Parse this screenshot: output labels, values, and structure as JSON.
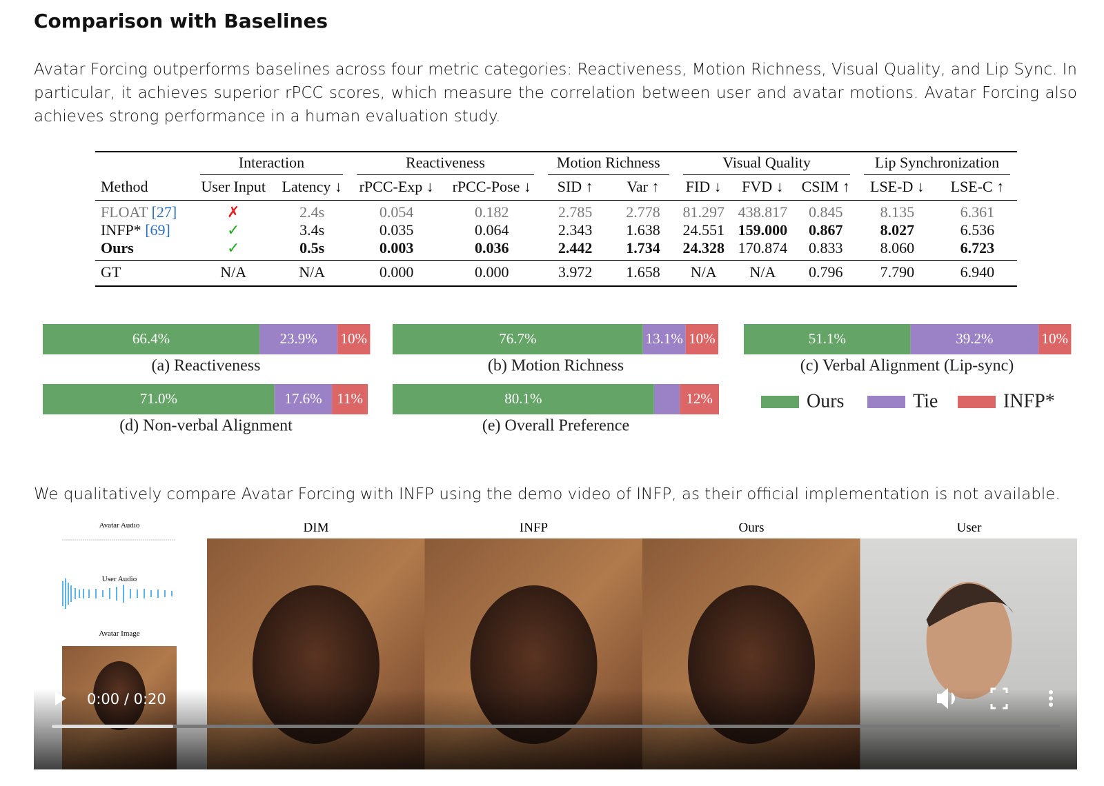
{
  "heading": "Comparison with Baselines",
  "paragraphs": [
    "Avatar Forcing outperforms baselines across four metric categories: Reactiveness, Motion Richness, Visual Quality, and Lip Sync. In particular, it achieves superior rPCC scores, which measure the correlation between user and avatar motions. Avatar Forcing also achieves strong performance in a human evaluation study.",
    "We qualitatively compare Avatar Forcing with INFP using the demo video of INFP, as their official implementation is not available."
  ],
  "table": {
    "groups": [
      {
        "label": "Interaction",
        "span": 2
      },
      {
        "label": "Reactiveness",
        "span": 2
      },
      {
        "label": "Motion Richness",
        "span": 2
      },
      {
        "label": "Visual Quality",
        "span": 3
      },
      {
        "label": "Lip Synchronization",
        "span": 2
      }
    ],
    "columns": [
      "Method",
      "User Input",
      "Latency ↓",
      "rPCC-Exp ↓",
      "rPCC-Pose ↓",
      "SID ↑",
      "Var ↑",
      "FID ↓",
      "FVD ↓",
      "CSIM ↑",
      "LSE-D ↓",
      "LSE-C ↑"
    ],
    "rows": [
      {
        "method": "FLOAT",
        "cite": "[27]",
        "cells": [
          "✗",
          "2.4s",
          "0.054",
          "0.182",
          "2.785",
          "2.778",
          "81.297",
          "438.817",
          "0.845",
          "8.135",
          "6.361"
        ],
        "bold": []
      },
      {
        "method": "INFP*",
        "cite": "[69]",
        "cells": [
          "✓",
          "3.4s",
          "0.035",
          "0.064",
          "2.343",
          "1.638",
          "24.551",
          "159.000",
          "0.867",
          "8.027",
          "6.536"
        ],
        "bold": [
          7,
          8,
          9
        ]
      },
      {
        "method": "Ours",
        "cells": [
          "✓",
          "0.5s",
          "0.003",
          "0.036",
          "2.442",
          "1.734",
          "24.328",
          "170.874",
          "0.833",
          "8.060",
          "6.723"
        ],
        "bold": [
          1,
          2,
          3,
          4,
          5,
          6,
          10
        ]
      },
      {
        "method": "GT",
        "cells": [
          "N/A",
          "N/A",
          "0.000",
          "0.000",
          "3.972",
          "1.658",
          "N/A",
          "N/A",
          "0.796",
          "7.790",
          "6.940"
        ],
        "bold": []
      }
    ]
  },
  "chart_data": {
    "type": "stacked-hbar",
    "categories": [
      "(a) Reactiveness",
      "(b) Motion Richness",
      "(c) Verbal Alignment (Lip-sync)",
      "(d) Non-verbal Alignment",
      "(e) Overall Preference"
    ],
    "xlim": [
      0,
      100
    ],
    "series": [
      {
        "name": "Ours",
        "color": "#64a466",
        "values": [
          66.4,
          76.7,
          51.1,
          71.0,
          80.1
        ],
        "value_labels": [
          "66.4%",
          "76.7%",
          "51.1%",
          "71.0%",
          "80.1%"
        ]
      },
      {
        "name": "Tie",
        "color": "#9b82c6",
        "values": [
          23.9,
          13.1,
          39.2,
          17.6,
          7.9
        ],
        "value_labels": [
          "23.9%",
          "13.1%",
          "39.2%",
          "17.6%",
          null
        ]
      },
      {
        "name": "INFP*",
        "color": "#dc6666",
        "values": [
          10,
          10,
          10,
          11,
          12
        ],
        "value_labels": [
          "10%",
          "10%",
          "10%",
          "11%",
          "12%"
        ]
      }
    ]
  },
  "video": {
    "side_labels": [
      "Avatar Audio",
      "User Audio",
      "Avatar Image"
    ],
    "frame_labels": [
      "DIM",
      "INFP",
      "Ours",
      "User"
    ],
    "time": "0:00 / 0:20"
  }
}
